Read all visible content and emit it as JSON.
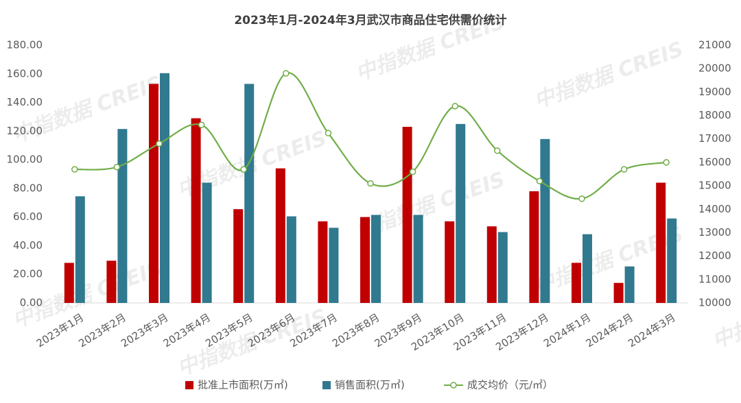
{
  "chart_data": {
    "type": "bar-line",
    "title": "2023年1月-2024年3月武汉市商品住宅供需价统计",
    "watermark": "中指数据 CREIS",
    "categories": [
      "2023年1月",
      "2023年2月",
      "2023年3月",
      "2023年4月",
      "2023年5月",
      "2023年6月",
      "2023年7月",
      "2023年8月",
      "2023年9月",
      "2023年10月",
      "2023年11月",
      "2023年12月",
      "2024年1月",
      "2024年2月",
      "2024年3月"
    ],
    "series": [
      {
        "name": "批准上市面积(万㎡)",
        "type": "bar",
        "color": "#c00000",
        "values": [
          28,
          29.5,
          153,
          129,
          65.5,
          94,
          57,
          60,
          123,
          57,
          53.5,
          78,
          28,
          14,
          84
        ]
      },
      {
        "name": "销售面积(万㎡)",
        "type": "bar",
        "color": "#31798f",
        "values": [
          74.5,
          121.5,
          160.5,
          84,
          153,
          60.5,
          52.5,
          61.5,
          61.5,
          125,
          49.5,
          114.5,
          48,
          25.5,
          59
        ]
      },
      {
        "name": "成交均价（元/㎡）",
        "type": "line",
        "axis": "y2",
        "color": "#70ad47",
        "values": [
          15700,
          15800,
          16800,
          17600,
          15700,
          19800,
          17250,
          15100,
          15600,
          18400,
          16500,
          15200,
          14450,
          15700,
          16000
        ]
      }
    ],
    "ylim": [
      0,
      180
    ],
    "yticks": [
      {
        "value": 0,
        "label": "0.00"
      },
      {
        "value": 20,
        "label": "20.00"
      },
      {
        "value": 40,
        "label": "40.00"
      },
      {
        "value": 60,
        "label": "60.00"
      },
      {
        "value": 80,
        "label": "80.00"
      },
      {
        "value": 100,
        "label": "100.00"
      },
      {
        "value": 120,
        "label": "120.00"
      },
      {
        "value": 140,
        "label": "140.00"
      },
      {
        "value": 160,
        "label": "160.00"
      },
      {
        "value": 180,
        "label": "180.00"
      }
    ],
    "y2lim": [
      10000,
      21000
    ],
    "y2ticks": [
      10000,
      11000,
      12000,
      13000,
      14000,
      15000,
      16000,
      17000,
      18000,
      19000,
      20000,
      21000
    ],
    "legend": "bottom"
  }
}
